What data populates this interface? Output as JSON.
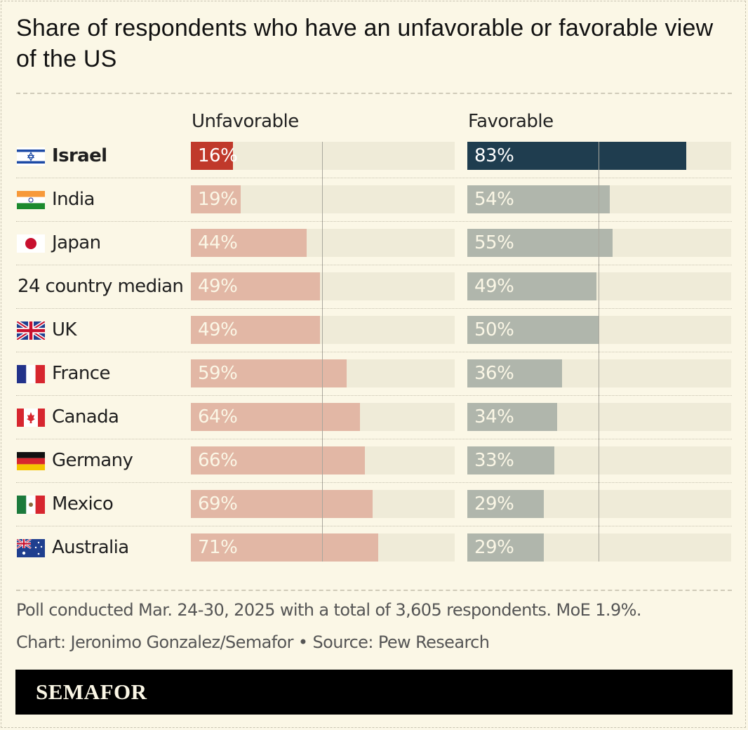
{
  "title": "Share of respondents who have an unfavorable or favorable view of the US",
  "headers": {
    "unfavorable": "Unfavorable",
    "favorable": "Favorable"
  },
  "colors": {
    "unfav_highlight": "#c0392b",
    "unfav": "#e2b7a5",
    "fav_highlight": "#1f3d4f",
    "fav": "#b0b6ac",
    "track": "#efebd8",
    "background": "#fbf7e6"
  },
  "chart_data": {
    "type": "bar",
    "categories": [
      "Israel",
      "India",
      "Japan",
      "24 country median",
      "UK",
      "France",
      "Canada",
      "Germany",
      "Mexico",
      "Australia"
    ],
    "flags": [
      "israel-flag-icon",
      "india-flag-icon",
      "japan-flag-icon",
      "",
      "uk-flag-icon",
      "france-flag-icon",
      "canada-flag-icon",
      "germany-flag-icon",
      "mexico-flag-icon",
      "australia-flag-icon"
    ],
    "highlight": "Israel",
    "series": [
      {
        "name": "Unfavorable",
        "values": [
          16,
          19,
          44,
          49,
          49,
          59,
          64,
          66,
          69,
          71
        ],
        "labels": [
          "16%",
          "19%",
          "44%",
          "49%",
          "49%",
          "59%",
          "64%",
          "66%",
          "69%",
          "71%"
        ]
      },
      {
        "name": "Favorable",
        "values": [
          83,
          54,
          55,
          49,
          50,
          36,
          34,
          33,
          29,
          29
        ],
        "labels": [
          "83%",
          "54%",
          "55%",
          "49%",
          "50%",
          "36%",
          "34%",
          "33%",
          "29%",
          "29%"
        ]
      }
    ],
    "xlim": [
      0,
      100
    ],
    "reference_line": 50
  },
  "notes": {
    "poll": "Poll conducted Mar. 24-30, 2025 with a total of 3,605 respondents. MoE 1.9%.",
    "credit": "Chart: Jeronimo Gonzalez/Semafor • Source: Pew Research"
  },
  "footer": {
    "logo": "SEMAFOR"
  }
}
